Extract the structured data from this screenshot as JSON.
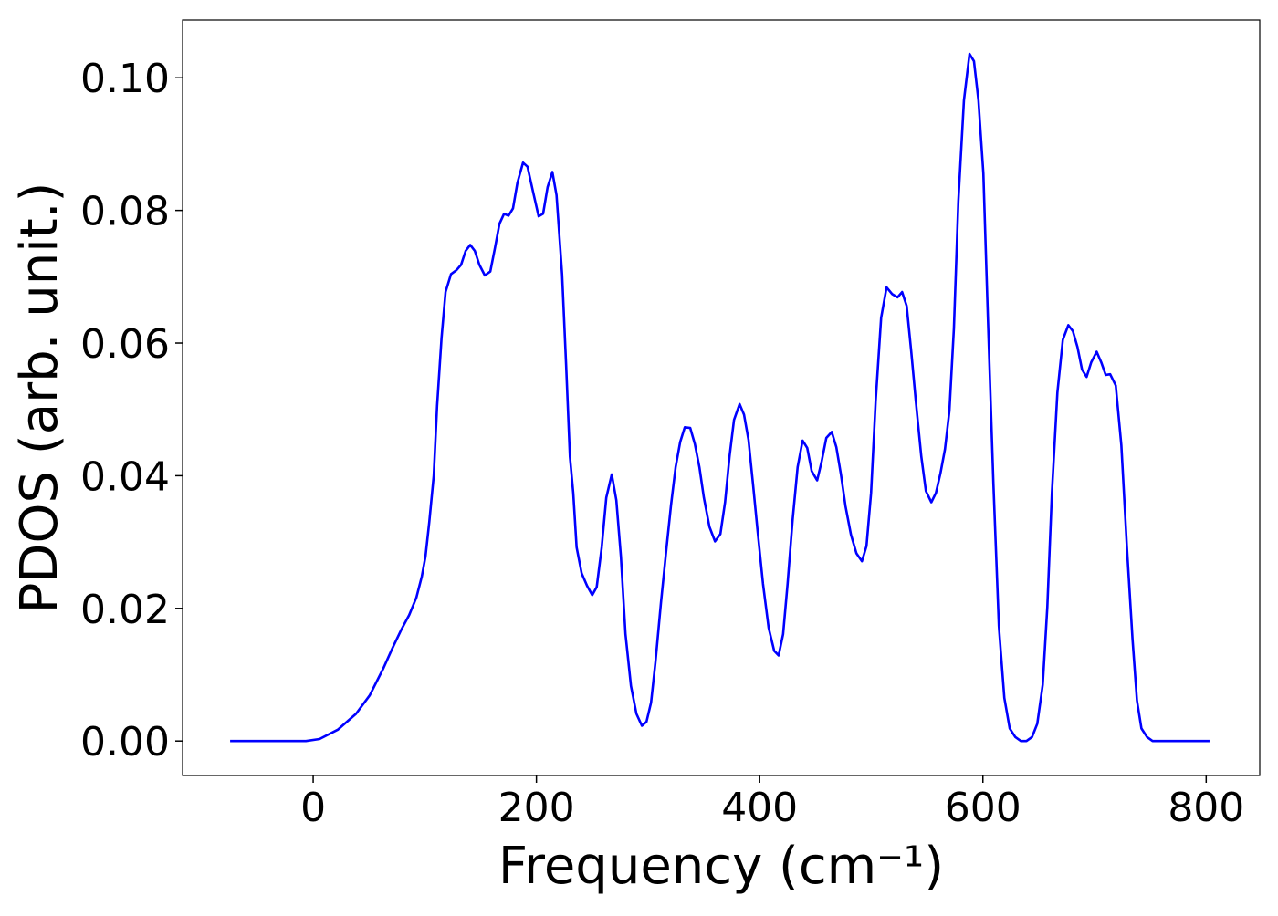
{
  "chart_data": {
    "type": "line",
    "xlabel": "Frequency (cm⁻¹)",
    "ylabel": "PDOS (arb. unit.)",
    "x": [
      -74.4,
      -6.5,
      5.7,
      22,
      38.4,
      50.7,
      63,
      71,
      79,
      86,
      92.4,
      97.3,
      100.6,
      104,
      108,
      111,
      115,
      118.6,
      123.5,
      128.4,
      132.5,
      136.6,
      140.7,
      144.8,
      148.9,
      153.8,
      158.7,
      162.8,
      166.9,
      171,
      175,
      179,
      183,
      188,
      192,
      197,
      202,
      206,
      210,
      214.3,
      218,
      223,
      226.6,
      230,
      233,
      236,
      240.5,
      245.4,
      250,
      254,
      258.5,
      262.6,
      267.5,
      271.6,
      275.7,
      279.8,
      284.7,
      289.6,
      294.5,
      298.6,
      302.7,
      306.7,
      311.6,
      316.6,
      320.6,
      324.7,
      328.8,
      332.9,
      337.8,
      341.9,
      346,
      350,
      355,
      360,
      364.8,
      369,
      373,
      377,
      382,
      386,
      390,
      394,
      398,
      403,
      408,
      413,
      417,
      421,
      425,
      429.5,
      434,
      438.5,
      442.6,
      446.6,
      451.5,
      455.6,
      459.7,
      464.6,
      468.7,
      472.8,
      476.9,
      481.8,
      486.7,
      491.6,
      495.7,
      499.8,
      503.9,
      508.8,
      513.7,
      518.6,
      523.5,
      527.6,
      531.7,
      535.8,
      539.9,
      544.8,
      548.9,
      553.8,
      557.9,
      562,
      566,
      570,
      574,
      578,
      583,
      588,
      592,
      596,
      600.4,
      604.5,
      609.4,
      614.3,
      619.2,
      624,
      629,
      634,
      639,
      644,
      648.7,
      653.6,
      657.7,
      661.8,
      666.7,
      671.6,
      676.5,
      680.6,
      684.7,
      688.8,
      692.9,
      697,
      701.9,
      706,
      710,
      714,
      719,
      724,
      729,
      734,
      738,
      742,
      747,
      752,
      803
    ],
    "series": [
      {
        "color": "#0000ff",
        "values": [
          0,
          0,
          0.0003,
          0.0017,
          0.0041,
          0.0069,
          0.011,
          0.014,
          0.0168,
          0.019,
          0.0216,
          0.0248,
          0.0278,
          0.033,
          0.04,
          0.0505,
          0.0608,
          0.0677,
          0.0704,
          0.071,
          0.0718,
          0.0739,
          0.0748,
          0.0739,
          0.0718,
          0.0702,
          0.0708,
          0.0743,
          0.078,
          0.0795,
          0.0792,
          0.0803,
          0.0842,
          0.0872,
          0.0866,
          0.0828,
          0.0791,
          0.0795,
          0.0835,
          0.0858,
          0.0823,
          0.0704,
          0.0567,
          0.0429,
          0.0374,
          0.0292,
          0.0253,
          0.0234,
          0.022,
          0.0232,
          0.0292,
          0.0367,
          0.0402,
          0.0363,
          0.0278,
          0.0161,
          0.0083,
          0.0041,
          0.0023,
          0.0029,
          0.0058,
          0.012,
          0.0209,
          0.0292,
          0.0356,
          0.0413,
          0.0451,
          0.0473,
          0.0472,
          0.0448,
          0.0413,
          0.0367,
          0.0323,
          0.0301,
          0.0312,
          0.036,
          0.0429,
          0.0484,
          0.0508,
          0.0492,
          0.0454,
          0.0388,
          0.0319,
          0.0237,
          0.0171,
          0.0136,
          0.0129,
          0.0161,
          0.0237,
          0.0333,
          0.0413,
          0.0453,
          0.0442,
          0.0407,
          0.0393,
          0.0422,
          0.0457,
          0.0466,
          0.0443,
          0.0402,
          0.0354,
          0.0311,
          0.0283,
          0.0271,
          0.0294,
          0.0374,
          0.0512,
          0.0638,
          0.0684,
          0.0674,
          0.0669,
          0.0677,
          0.0656,
          0.0587,
          0.0512,
          0.0429,
          0.0377,
          0.036,
          0.0374,
          0.0404,
          0.044,
          0.0498,
          0.0622,
          0.0814,
          0.0966,
          0.1036,
          0.1025,
          0.0966,
          0.0856,
          0.0636,
          0.0388,
          0.0173,
          0.0065,
          0.0019,
          0.0006,
          0,
          0,
          0.0006,
          0.0026,
          0.0085,
          0.0202,
          0.0374,
          0.0525,
          0.0605,
          0.0627,
          0.0618,
          0.0594,
          0.056,
          0.0549,
          0.0571,
          0.0587,
          0.0571,
          0.0552,
          0.0553,
          0.0536,
          0.0446,
          0.0292,
          0.0154,
          0.0061,
          0.0019,
          0.0006,
          0,
          0
        ]
      }
    ],
    "xlim": [
      -117,
      848
    ],
    "ylim": [
      -0.0052,
      0.1087
    ],
    "xticks": [
      0,
      200,
      400,
      600,
      800
    ],
    "yticks": [
      {
        "value": 0,
        "label": "0.00"
      },
      {
        "value": 0.02,
        "label": "0.02"
      },
      {
        "value": 0.04,
        "label": "0.04"
      },
      {
        "value": 0.06,
        "label": "0.06"
      },
      {
        "value": 0.08,
        "label": "0.08"
      },
      {
        "value": 0.1,
        "label": "0.10"
      }
    ],
    "grid": false
  }
}
